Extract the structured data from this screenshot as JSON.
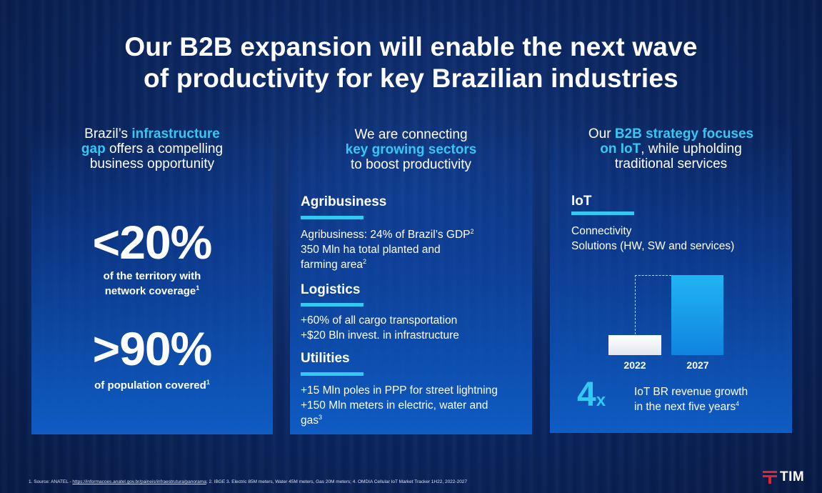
{
  "title": {
    "line1": "Our B2B expansion will enable the next wave",
    "line2": "of productivity for key Brazilian industries"
  },
  "panel1": {
    "head": {
      "pre": "Brazil’s ",
      "hl1": "infrastructure",
      "hl2": "gap",
      "post1": " offers a compelling",
      "post2": "business opportunity"
    },
    "stat1": {
      "value": "<20%",
      "label1": "of the territory with",
      "label2": "network coverage",
      "note": "1"
    },
    "stat2": {
      "value": ">90%",
      "label": "of population covered",
      "note": "1"
    }
  },
  "panel2": {
    "head": {
      "line1": "We are connecting",
      "hl": "key growing sectors",
      "line3": "to boost productivity"
    },
    "sections": [
      {
        "title": "Agribusiness",
        "line1": "Agribusiness: 24% of Brazil’s GDP",
        "note1": "2",
        "line2": "350 Mln ha total planted and",
        "line3": "farming area",
        "note3": "2"
      },
      {
        "title": "Logistics",
        "line1": "+60% of all cargo transportation",
        "line2": "+$20 Bln invest. in infrastructure"
      },
      {
        "title": "Utilities",
        "line1": "+15 Mln poles in PPP for street lightning",
        "line2": "+150 Mln meters in electric, water and",
        "line3": "gas",
        "note3": "3"
      }
    ]
  },
  "panel3": {
    "head": {
      "pre": "Our ",
      "hl1": "B2B strategy focuses",
      "hl2": "on IoT",
      "post1": ", while upholding",
      "post2": "traditional services"
    },
    "iot_title": "IoT",
    "iot_line1": "Connectivity",
    "iot_line2": "Solutions (HW, SW and services)",
    "chart_data": {
      "type": "bar",
      "categories": [
        "2022",
        "2027"
      ],
      "values": [
        1,
        4
      ],
      "title": "",
      "xlabel": "",
      "ylabel": ""
    },
    "growth_value": "4",
    "growth_suffix": "x",
    "growth_line1": "IoT BR revenue growth",
    "growth_line2": "in the next five years",
    "growth_note": "4"
  },
  "footnote": {
    "pre": "1. Source: ANATEL - ",
    "link": "https://informacoes.anatel.gov.br/paineis/infraestrutura/panorama",
    "post": "; 2. IBGE 3. Electric 85M meters, Water 45M meters, Gas 20M meters; 4. OMDIA Cellular IoT Market Tracker 1H22, 2022-2027"
  },
  "logo": {
    "text": "TIM",
    "color": "#e4232d"
  }
}
